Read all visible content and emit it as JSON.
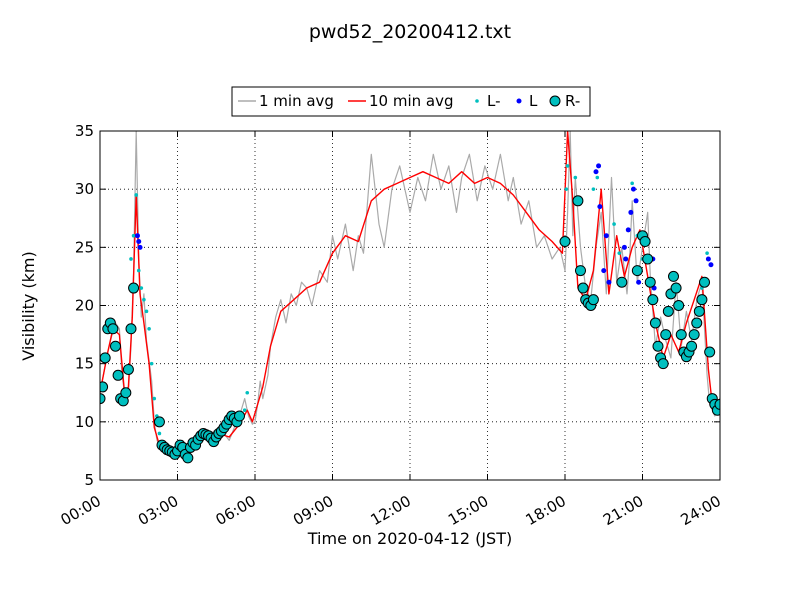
{
  "chart_data": {
    "type": "line",
    "title": "pwd52_20200412.txt",
    "xlabel": "Time on 2020-04-12 (JST)",
    "ylabel": "Visibility (km)",
    "xlim": [
      0,
      24
    ],
    "ylim": [
      5,
      35
    ],
    "x_ticks": [
      "00:00",
      "03:00",
      "06:00",
      "09:00",
      "12:00",
      "15:00",
      "18:00",
      "21:00",
      "24:00"
    ],
    "y_ticks": [
      5,
      10,
      15,
      20,
      25,
      30,
      35
    ],
    "grid": true,
    "legend_position": "top-center",
    "series": [
      {
        "name": "1 min avg",
        "style": "line",
        "color": "#aaaaaa",
        "x": [
          0.0,
          0.3,
          0.5,
          0.6,
          0.75,
          0.85,
          1.0,
          1.1,
          1.2,
          1.3,
          1.4,
          1.5,
          1.6,
          1.7,
          1.8,
          2.0,
          2.1,
          2.2,
          2.3,
          2.4,
          2.5,
          2.6,
          2.8,
          3.0,
          3.2,
          3.4,
          3.6,
          3.8,
          4.0,
          4.2,
          4.4,
          4.6,
          4.8,
          5.0,
          5.2,
          5.4,
          5.6,
          5.75,
          5.9,
          6.0,
          6.1,
          6.2,
          6.3,
          6.5,
          6.6,
          6.8,
          7.0,
          7.2,
          7.4,
          7.6,
          7.8,
          8.0,
          8.2,
          8.5,
          8.8,
          9.0,
          9.2,
          9.5,
          9.8,
          10.0,
          10.2,
          10.5,
          10.8,
          11.0,
          11.3,
          11.6,
          12.0,
          12.3,
          12.6,
          12.9,
          13.2,
          13.5,
          13.8,
          14.0,
          14.3,
          14.6,
          14.9,
          15.2,
          15.5,
          15.8,
          16.0,
          16.3,
          16.6,
          16.9,
          17.2,
          17.5,
          17.8,
          18.0,
          18.1,
          18.2,
          18.3,
          18.4,
          18.6,
          18.8,
          19.0,
          19.2,
          19.4,
          19.6,
          19.8,
          20.0,
          20.2,
          20.4,
          20.5,
          20.6,
          20.8,
          21.0,
          21.2,
          21.3,
          21.5,
          21.7,
          21.9,
          22.1,
          22.3,
          22.5,
          22.7,
          22.9,
          23.1,
          23.3,
          23.5,
          23.6,
          23.7,
          23.8,
          24.0
        ],
        "y": [
          12.5,
          16.0,
          17.8,
          18.5,
          18.0,
          14.0,
          11.8,
          12.5,
          16.5,
          23.0,
          35.0,
          24.0,
          19.0,
          21.0,
          17.0,
          13.5,
          10.0,
          8.5,
          7.8,
          8.2,
          7.6,
          7.4,
          7.8,
          7.5,
          8.4,
          7.0,
          8.3,
          8.8,
          9.0,
          8.7,
          9.2,
          9.5,
          9.0,
          8.4,
          9.5,
          10.5,
          12.0,
          10.5,
          9.8,
          10.0,
          11.5,
          13.5,
          12.0,
          14.0,
          16.5,
          19.0,
          20.5,
          18.5,
          21.0,
          20.0,
          22.0,
          21.5,
          20.0,
          23.0,
          22.0,
          26.0,
          24.0,
          27.0,
          23.0,
          26.0,
          24.5,
          33.0,
          27.0,
          25.0,
          30.0,
          32.0,
          28.0,
          31.0,
          29.0,
          33.0,
          30.0,
          32.0,
          28.0,
          31.0,
          33.0,
          29.0,
          32.0,
          30.0,
          33.0,
          29.0,
          31.0,
          27.0,
          29.0,
          25.0,
          26.0,
          24.0,
          25.0,
          23.0,
          28.0,
          35.0,
          26.0,
          31.0,
          25.0,
          21.5,
          20.5,
          25.0,
          28.0,
          21.0,
          31.0,
          22.0,
          25.0,
          21.0,
          24.0,
          29.0,
          22.0,
          25.0,
          28.0,
          22.5,
          16.5,
          19.0,
          17.0,
          15.5,
          22.0,
          16.5,
          19.5,
          17.0,
          20.5,
          22.0,
          14.0,
          11.5,
          11.0,
          10.5,
          12.0
        ]
      },
      {
        "name": "10 min avg",
        "style": "line",
        "color": "#ff0000",
        "x": [
          0.0,
          0.3,
          0.5,
          0.75,
          0.95,
          1.1,
          1.25,
          1.4,
          1.55,
          1.7,
          1.9,
          2.1,
          2.3,
          2.6,
          3.0,
          3.4,
          3.8,
          4.2,
          4.6,
          5.0,
          5.4,
          5.7,
          5.9,
          6.1,
          6.3,
          6.6,
          7.0,
          7.5,
          8.0,
          8.5,
          9.0,
          9.5,
          10.0,
          10.5,
          11.0,
          11.5,
          12.0,
          12.5,
          13.0,
          13.5,
          14.0,
          14.5,
          15.0,
          15.5,
          16.0,
          16.5,
          17.0,
          17.5,
          17.9,
          18.1,
          18.3,
          18.5,
          18.8,
          19.1,
          19.4,
          19.7,
          20.0,
          20.3,
          20.6,
          20.9,
          21.2,
          21.5,
          21.8,
          22.1,
          22.4,
          22.7,
          23.0,
          23.3,
          23.55,
          23.7,
          23.85,
          24.0
        ],
        "y": [
          12.5,
          16.0,
          18.0,
          17.5,
          12.5,
          13.0,
          19.0,
          29.5,
          21.0,
          18.5,
          15.0,
          9.5,
          8.0,
          7.5,
          7.5,
          7.8,
          8.5,
          9.0,
          9.0,
          8.7,
          9.8,
          11.0,
          10.0,
          11.5,
          13.0,
          16.5,
          19.5,
          20.5,
          21.5,
          22.0,
          24.5,
          26.0,
          25.5,
          29.0,
          30.0,
          30.5,
          31.0,
          31.5,
          31.0,
          30.5,
          31.5,
          30.5,
          31.0,
          30.5,
          29.5,
          28.0,
          26.5,
          25.5,
          24.5,
          35.0,
          29.0,
          21.5,
          20.5,
          23.0,
          30.0,
          21.0,
          26.0,
          22.5,
          25.0,
          26.5,
          22.5,
          18.5,
          15.5,
          17.5,
          16.0,
          18.5,
          20.5,
          22.5,
          14.5,
          11.5,
          11.0,
          12.0
        ]
      },
      {
        "name": "L-",
        "style": "marker",
        "marker": "small-dot",
        "color": "#00bfbf",
        "x": [
          1.2,
          1.3,
          1.4,
          1.5,
          1.6,
          1.7,
          1.8,
          1.9,
          2.0,
          2.1,
          2.2,
          2.3,
          5.5,
          5.6,
          5.7,
          18.05,
          18.1,
          18.4,
          19.1,
          19.25,
          19.9,
          20.1,
          20.6,
          20.8,
          21.0,
          23.3,
          23.5
        ],
        "y": [
          24.0,
          26.0,
          29.5,
          23.0,
          21.5,
          20.5,
          19.5,
          18.0,
          15.0,
          12.0,
          10.5,
          9.0,
          10.5,
          11.0,
          12.5,
          30.0,
          32.0,
          31.0,
          30.0,
          31.0,
          27.0,
          24.5,
          30.5,
          26.0,
          24.0,
          21.5,
          24.5
        ]
      },
      {
        "name": "L",
        "style": "marker",
        "marker": "dot",
        "color": "#0000ff",
        "x": [
          1.45,
          1.5,
          1.55,
          19.2,
          19.3,
          19.35,
          19.5,
          19.6,
          19.7,
          20.3,
          20.35,
          20.45,
          20.55,
          20.65,
          20.75,
          20.85,
          21.4,
          21.45,
          23.55,
          23.65
        ],
        "y": [
          26.0,
          25.5,
          25.0,
          31.5,
          32.0,
          28.5,
          23.0,
          26.0,
          22.0,
          25.0,
          24.0,
          26.5,
          28.0,
          30.0,
          29.0,
          22.0,
          24.0,
          21.5,
          24.0,
          23.5
        ]
      },
      {
        "name": "R-",
        "style": "marker",
        "marker": "large-circle",
        "color": "#00bfbf",
        "x": [
          0.0,
          0.1,
          0.2,
          0.3,
          0.4,
          0.5,
          0.6,
          0.7,
          0.8,
          0.9,
          1.0,
          1.1,
          1.2,
          1.3,
          2.3,
          2.4,
          2.5,
          2.6,
          2.7,
          2.8,
          2.9,
          3.0,
          3.1,
          3.2,
          3.3,
          3.4,
          3.5,
          3.6,
          3.7,
          3.8,
          3.9,
          4.0,
          4.1,
          4.2,
          4.3,
          4.4,
          4.5,
          4.6,
          4.7,
          4.8,
          4.9,
          5.0,
          5.1,
          5.2,
          5.3,
          5.4,
          18.0,
          18.5,
          18.6,
          18.7,
          18.8,
          18.9,
          19.0,
          19.1,
          20.2,
          20.8,
          21.0,
          21.1,
          21.2,
          21.3,
          21.4,
          21.5,
          21.6,
          21.7,
          21.8,
          21.9,
          22.0,
          22.1,
          22.2,
          22.3,
          22.4,
          22.5,
          22.6,
          22.7,
          22.8,
          22.9,
          23.0,
          23.1,
          23.2,
          23.3,
          23.4,
          23.6,
          23.7,
          23.8,
          23.9,
          24.0
        ],
        "y": [
          12.0,
          13.0,
          15.5,
          18.0,
          18.5,
          18.0,
          16.5,
          14.0,
          12.0,
          11.8,
          12.5,
          14.5,
          18.0,
          21.5,
          10.0,
          8.0,
          7.8,
          7.6,
          7.5,
          7.4,
          7.2,
          7.5,
          8.0,
          7.8,
          7.2,
          6.9,
          7.8,
          8.2,
          8.0,
          8.5,
          8.8,
          9.0,
          8.9,
          8.8,
          8.6,
          8.3,
          8.7,
          9.0,
          9.2,
          9.5,
          9.8,
          10.2,
          10.5,
          10.3,
          10.0,
          10.5,
          25.5,
          29.0,
          23.0,
          21.5,
          20.5,
          20.2,
          20.0,
          20.5,
          22.0,
          23.0,
          26.0,
          25.5,
          24.0,
          22.0,
          20.5,
          18.5,
          16.5,
          15.5,
          15.0,
          17.5,
          19.5,
          21.0,
          22.5,
          21.5,
          20.0,
          17.5,
          16.0,
          15.6,
          16.0,
          16.5,
          17.5,
          18.5,
          19.5,
          20.5,
          22.0,
          16.0,
          12.0,
          11.5,
          11.0,
          11.5
        ]
      }
    ]
  }
}
